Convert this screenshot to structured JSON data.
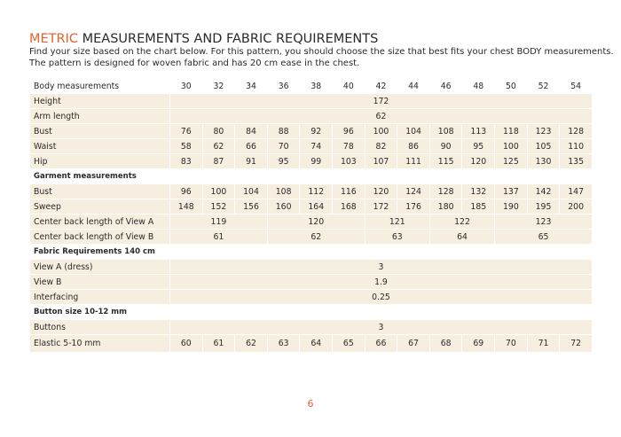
{
  "header": {
    "title_accent": "METRIC",
    "title_rest": "MEASUREMENTS AND FABRIC REQUIREMENTS",
    "intro": [
      "Find your size based on the chart below. For this pattern, you should choose the size that best fits your chest BODY measurements.",
      "The pattern is designed for woven fabric and has 20 cm ease in the chest."
    ]
  },
  "table": {
    "rows": [
      {
        "label": "Body measurements",
        "cells": [
          "30",
          "32",
          "34",
          "36",
          "38",
          "40",
          "42",
          "44",
          "46",
          "48",
          "50",
          "52",
          "54"
        ]
      },
      {
        "label": "Height",
        "cells": [
          "172"
        ]
      },
      {
        "label": "Arm length",
        "cells": [
          "62"
        ]
      },
      {
        "label": "Bust",
        "cells": [
          "76",
          "80",
          "84",
          "88",
          "92",
          "96",
          "100",
          "104",
          "108",
          "113",
          "118",
          "123",
          "128"
        ]
      },
      {
        "label": "Waist",
        "cells": [
          "58",
          "62",
          "66",
          "70",
          "74",
          "78",
          "82",
          "86",
          "90",
          "95",
          "100",
          "105",
          "110"
        ]
      },
      {
        "label": "Hip",
        "cells": [
          "83",
          "87",
          "91",
          "95",
          "99",
          "103",
          "107",
          "111",
          "115",
          "120",
          "125",
          "130",
          "135"
        ]
      },
      {
        "label": "Garment measurements"
      },
      {
        "label": "Bust",
        "cells": [
          "96",
          "100",
          "104",
          "108",
          "112",
          "116",
          "120",
          "124",
          "128",
          "132",
          "137",
          "142",
          "147"
        ]
      },
      {
        "label": "Sweep",
        "cells": [
          "148",
          "152",
          "156",
          "160",
          "164",
          "168",
          "172",
          "176",
          "180",
          "185",
          "190",
          "195",
          "200"
        ]
      },
      {
        "label": "Center back length of View A",
        "cells": [
          "119",
          "120",
          "121",
          "122",
          "123"
        ]
      },
      {
        "label": "Center back length of View  B",
        "cells": [
          "61",
          "62",
          "63",
          "64",
          "65"
        ]
      },
      {
        "label": "Fabric Requirements 140 cm"
      },
      {
        "label": "View A (dress)",
        "cells": [
          "3"
        ]
      },
      {
        "label": "View B",
        "cells": [
          "1.9"
        ]
      },
      {
        "label": "Interfacing",
        "cells": [
          "0.25"
        ]
      },
      {
        "label": "Button size 10-12 mm"
      },
      {
        "label": "Buttons",
        "cells": [
          "3"
        ]
      },
      {
        "label": "Elastic 5-10 mm",
        "cells": [
          "60",
          "61",
          "62",
          "63",
          "64",
          "65",
          "66",
          "67",
          "68",
          "69",
          "70",
          "71",
          "72"
        ]
      }
    ]
  },
  "footer": {
    "page_number": "6"
  }
}
